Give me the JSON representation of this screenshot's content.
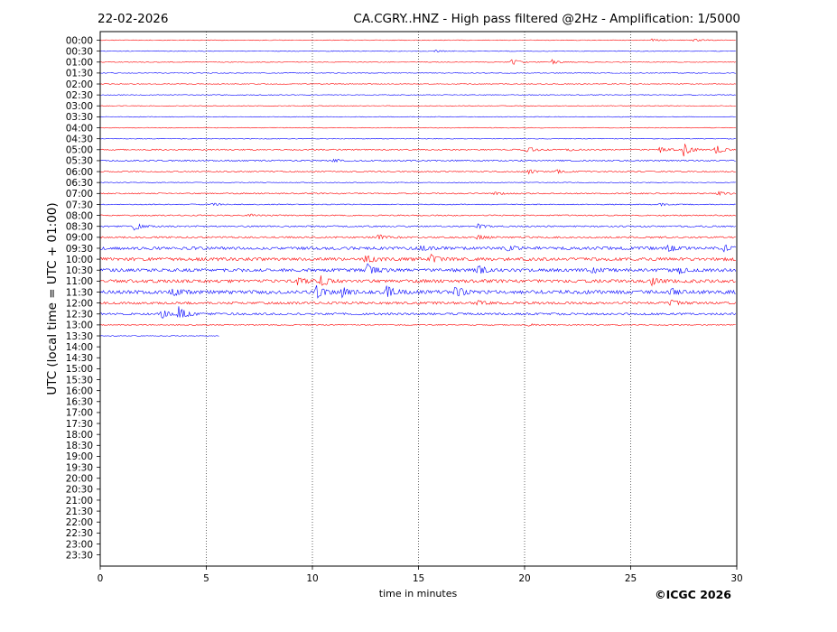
{
  "header": {
    "date": "22-02-2026",
    "title": "CA.CGRY..HNZ - High pass filtered @2Hz - Amplification: 1/5000"
  },
  "footer": {
    "copyright": "©ICGC 2026"
  },
  "chart_data": {
    "type": "line",
    "title": "CA.CGRY..HNZ - High pass filtered @2Hz - Amplification: 1/5000",
    "xlabel": "time in minutes",
    "ylabel": "UTC (local time = UTC + 01:00)",
    "xlim": [
      0,
      30
    ],
    "xticks": [
      0,
      5,
      10,
      15,
      20,
      25,
      30
    ],
    "grid": "vertical dotted lines at x = 5, 10, 15, 20, 25",
    "row_labels": [
      "00:00",
      "00:30",
      "01:00",
      "01:30",
      "02:00",
      "02:30",
      "03:00",
      "03:30",
      "04:00",
      "04:30",
      "05:00",
      "05:30",
      "06:00",
      "06:30",
      "07:00",
      "07:30",
      "08:00",
      "08:30",
      "09:00",
      "09:30",
      "10:00",
      "10:30",
      "11:00",
      "11:30",
      "12:00",
      "12:30",
      "13:00",
      "13:30",
      "14:00",
      "14:30",
      "15:00",
      "15:30",
      "16:00",
      "16:30",
      "17:00",
      "17:30",
      "18:00",
      "18:30",
      "19:00",
      "19:30",
      "20:00",
      "20:30",
      "21:00",
      "21:30",
      "22:00",
      "22:30",
      "23:00",
      "23:30"
    ],
    "trace_colors": [
      "#ff0000",
      "#0000ff"
    ],
    "traces_recorded_rows": 28,
    "last_row_end_minute": 5.6,
    "noise_level": [
      0.3,
      0.3,
      0.3,
      0.3,
      0.3,
      0.3,
      0.3,
      0.3,
      0.3,
      0.3,
      0.5,
      0.6,
      0.5,
      0.3,
      0.5,
      0.4,
      0.5,
      0.6,
      0.7,
      1.2,
      1.3,
      1.3,
      1.3,
      1.5,
      1.0,
      0.9,
      0.4,
      0.3
    ],
    "events": [
      {
        "row": "00:00",
        "minute": 26.0,
        "amplitude": 1.5
      },
      {
        "row": "00:00",
        "minute": 28.0,
        "amplitude": 1.5
      },
      {
        "row": "00:30",
        "minute": 15.8,
        "amplitude": 1.2
      },
      {
        "row": "01:00",
        "minute": 19.4,
        "amplitude": 3.5
      },
      {
        "row": "01:00",
        "minute": 21.3,
        "amplitude": 2.5
      },
      {
        "row": "05:00",
        "minute": 20.1,
        "amplitude": 4.0
      },
      {
        "row": "05:00",
        "minute": 22.0,
        "amplitude": 1.5
      },
      {
        "row": "05:00",
        "minute": 26.4,
        "amplitude": 4.0
      },
      {
        "row": "05:00",
        "minute": 27.5,
        "amplitude": 7.0
      },
      {
        "row": "05:00",
        "minute": 29.0,
        "amplitude": 6.0
      },
      {
        "row": "05:30",
        "minute": 11.0,
        "amplitude": 1.5
      },
      {
        "row": "06:00",
        "minute": 20.2,
        "amplitude": 2.5
      },
      {
        "row": "06:00",
        "minute": 21.5,
        "amplitude": 2.0
      },
      {
        "row": "07:00",
        "minute": 18.6,
        "amplitude": 1.5
      },
      {
        "row": "07:00",
        "minute": 29.1,
        "amplitude": 2.5
      },
      {
        "row": "07:30",
        "minute": 5.3,
        "amplitude": 1.5
      },
      {
        "row": "07:30",
        "minute": 26.4,
        "amplitude": 1.5
      },
      {
        "row": "08:00",
        "minute": 7.0,
        "amplitude": 1.5
      },
      {
        "row": "08:30",
        "minute": 1.6,
        "amplitude": 4.5
      },
      {
        "row": "08:30",
        "minute": 17.8,
        "amplitude": 2.5
      },
      {
        "row": "09:00",
        "minute": 13.1,
        "amplitude": 3.0
      },
      {
        "row": "09:00",
        "minute": 17.8,
        "amplitude": 3.0
      },
      {
        "row": "09:30",
        "minute": 15.1,
        "amplitude": 3.0
      },
      {
        "row": "09:30",
        "minute": 19.2,
        "amplitude": 3.0
      },
      {
        "row": "09:30",
        "minute": 26.8,
        "amplitude": 4.0
      },
      {
        "row": "09:30",
        "minute": 29.4,
        "amplitude": 3.5
      },
      {
        "row": "10:00",
        "minute": 12.5,
        "amplitude": 5.0
      },
      {
        "row": "10:00",
        "minute": 15.6,
        "amplitude": 5.0
      },
      {
        "row": "10:30",
        "minute": 12.6,
        "amplitude": 7.0
      },
      {
        "row": "10:30",
        "minute": 17.8,
        "amplitude": 6.0
      },
      {
        "row": "10:30",
        "minute": 23.2,
        "amplitude": 3.0
      },
      {
        "row": "10:30",
        "minute": 27.3,
        "amplitude": 3.0
      },
      {
        "row": "11:00",
        "minute": 9.3,
        "amplitude": 4.0
      },
      {
        "row": "11:00",
        "minute": 10.4,
        "amplitude": 7.0
      },
      {
        "row": "11:00",
        "minute": 26.0,
        "amplitude": 4.0
      },
      {
        "row": "11:30",
        "minute": 3.4,
        "amplitude": 4.0
      },
      {
        "row": "11:30",
        "minute": 10.2,
        "amplitude": 6.5
      },
      {
        "row": "11:30",
        "minute": 11.4,
        "amplitude": 5.0
      },
      {
        "row": "11:30",
        "minute": 13.5,
        "amplitude": 7.0
      },
      {
        "row": "11:30",
        "minute": 16.7,
        "amplitude": 7.0
      },
      {
        "row": "11:30",
        "minute": 26.9,
        "amplitude": 3.5
      },
      {
        "row": "12:00",
        "minute": 17.8,
        "amplitude": 2.5
      },
      {
        "row": "12:00",
        "minute": 26.9,
        "amplitude": 3.5
      },
      {
        "row": "12:30",
        "minute": 2.9,
        "amplitude": 5.0
      },
      {
        "row": "12:30",
        "minute": 3.7,
        "amplitude": 8.0
      },
      {
        "row": "13:00",
        "minute": 20.2,
        "amplitude": 1.2
      }
    ]
  }
}
